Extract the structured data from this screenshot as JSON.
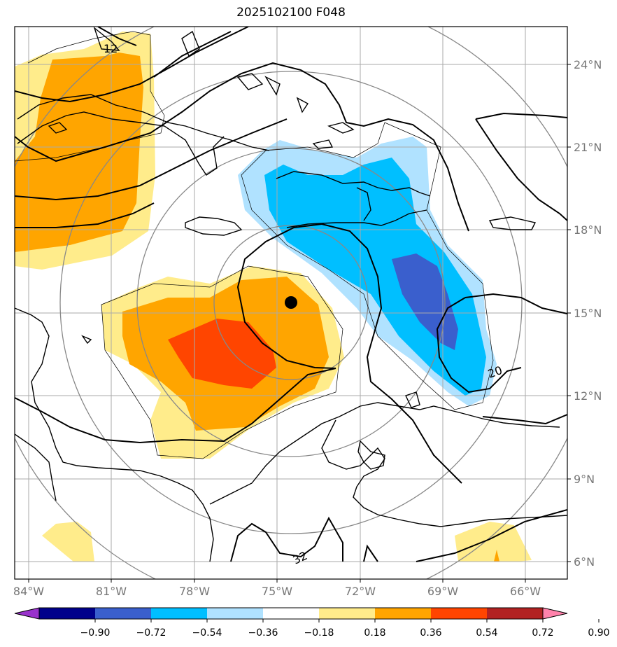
{
  "title": "2025102100 F048",
  "lat_labels": [
    "24°N",
    "21°N",
    "18°N",
    "15°N",
    "12°N",
    "9°N",
    "6°N"
  ],
  "lon_labels": [
    "84°W",
    "81°W",
    "78°W",
    "75°W",
    "72°W",
    "69°W",
    "66°W"
  ],
  "contour_labels": [
    "12",
    "20",
    "32"
  ],
  "colorbar": {
    "ticks": [
      "−0.90",
      "−0.72",
      "−0.54",
      "−0.36",
      "−0.18",
      "0.18",
      "0.36",
      "0.54",
      "0.72",
      "0.90"
    ],
    "colors": [
      "#9932CC",
      "#00008B",
      "#3A5FCD",
      "#00BFFF",
      "#B0E2FF",
      "#FFFFFF",
      "#FFEC8B",
      "#FFA500",
      "#FF4500",
      "#B22222",
      "#FF82AB"
    ]
  },
  "marker": "storm-center"
}
